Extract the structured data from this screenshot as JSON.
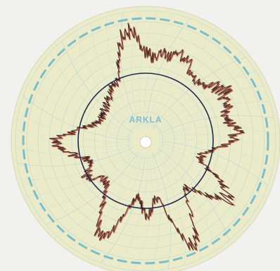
{
  "logo": "ARKLA"
}
